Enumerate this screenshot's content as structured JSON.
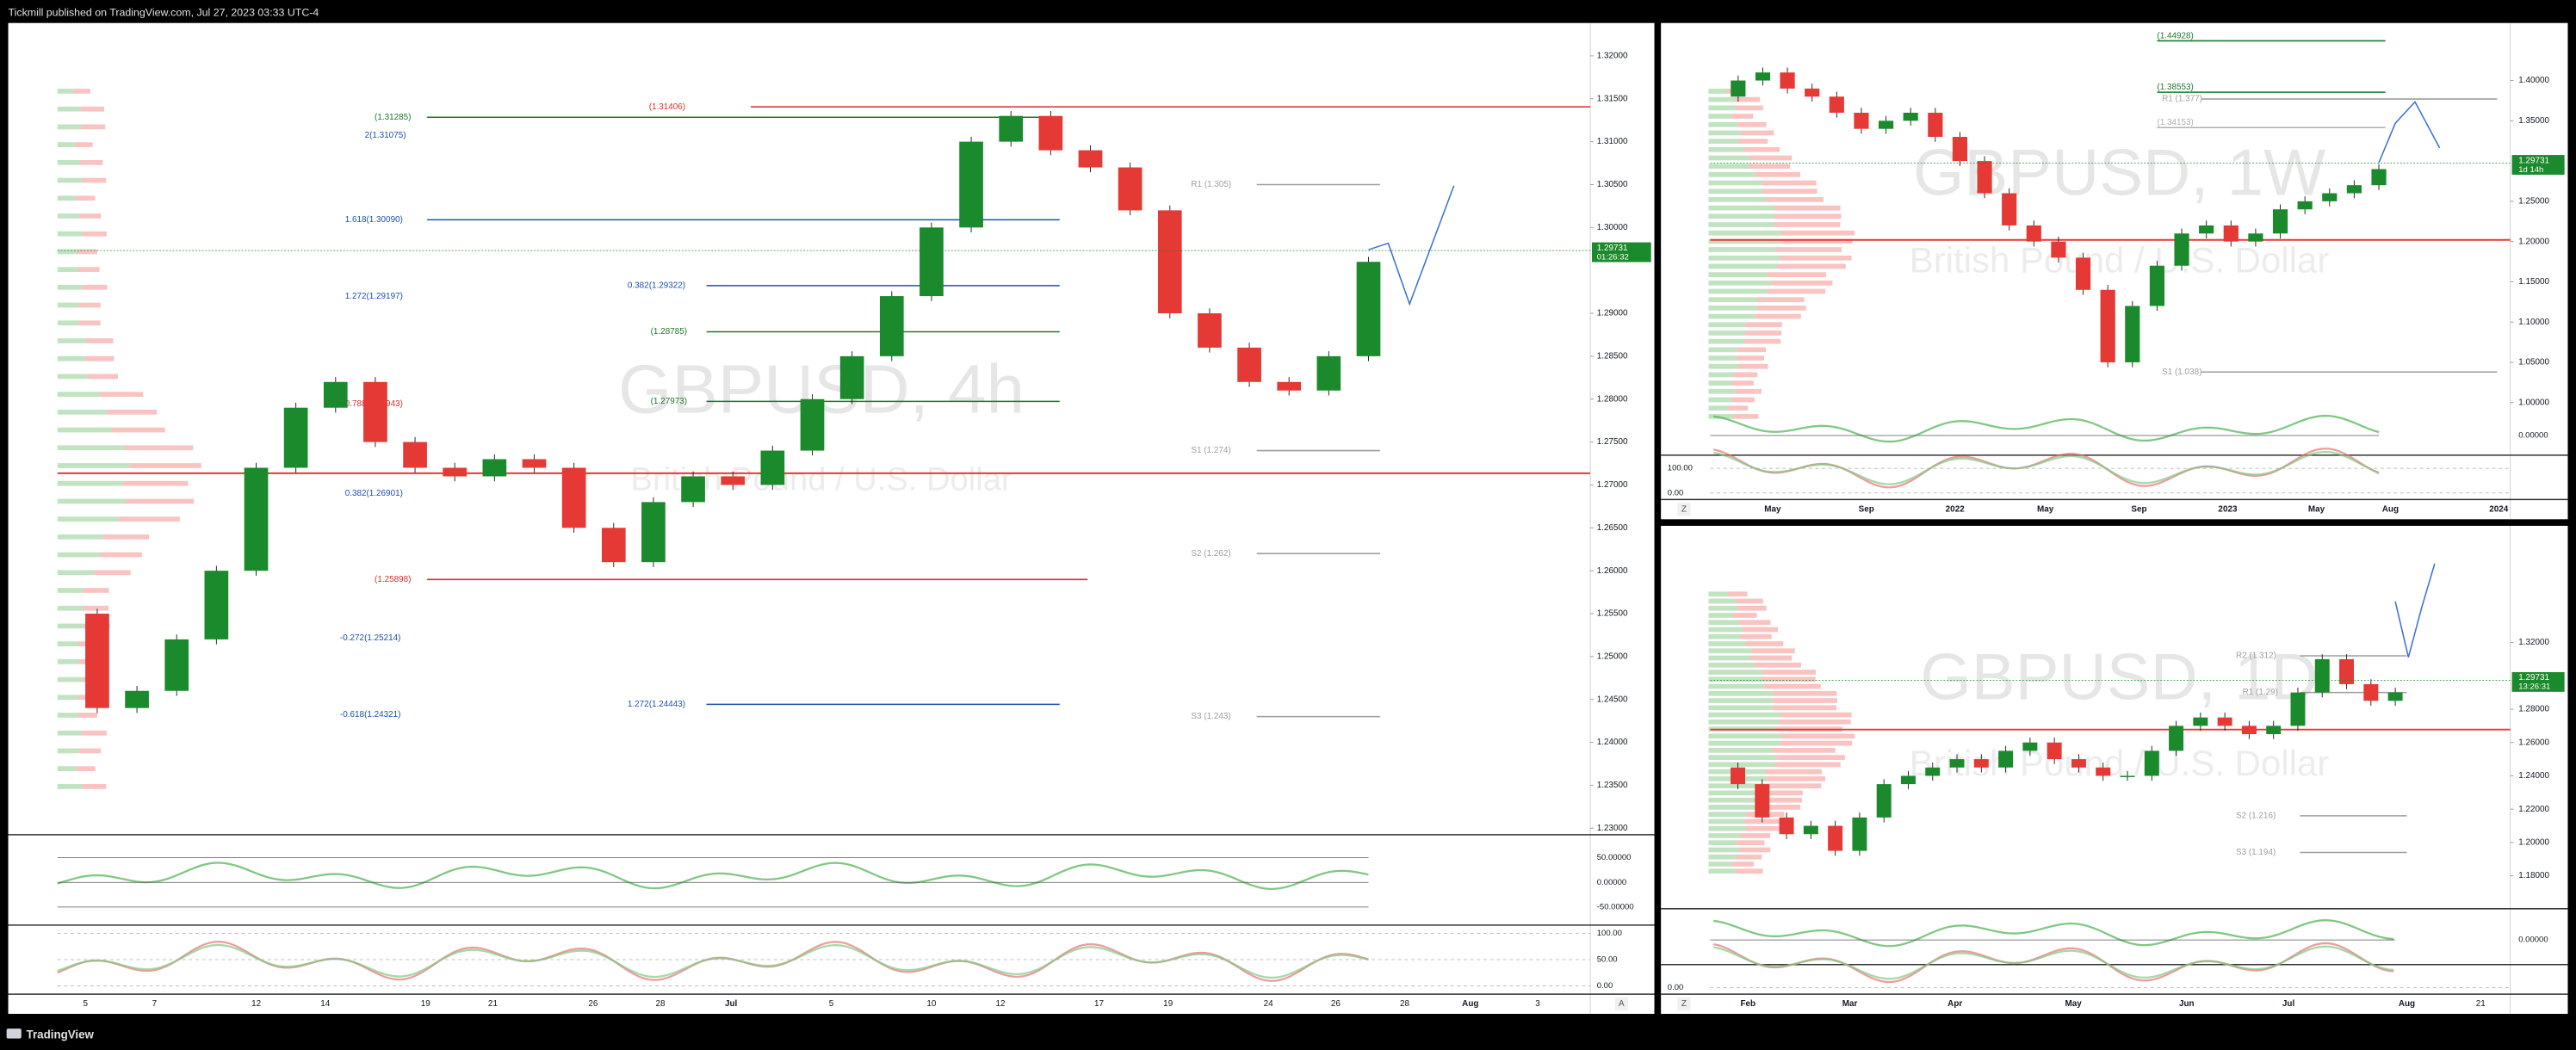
{
  "header": {
    "title": "Tickmill published on TradingView.com, Jul 27, 2023 03:33 UTC-4"
  },
  "footer": {
    "brand": "TradingView"
  },
  "panes": [
    {
      "watermark": "GBPUSD, 4h",
      "description": "British Pound / U.S. Dollar",
      "price_ticks": [
        {
          "value": 1.32,
          "label": "1.32000"
        },
        {
          "value": 1.315,
          "label": "1.31500"
        },
        {
          "value": 1.31,
          "label": "1.31000"
        },
        {
          "value": 1.305,
          "label": "1.30500"
        },
        {
          "value": 1.3,
          "label": "1.30000"
        },
        {
          "value": 1.29,
          "label": "1.29000"
        },
        {
          "value": 1.285,
          "label": "1.28500"
        },
        {
          "value": 1.28,
          "label": "1.28000"
        },
        {
          "value": 1.275,
          "label": "1.27500"
        },
        {
          "value": 1.27,
          "label": "1.27000"
        },
        {
          "value": 1.265,
          "label": "1.26500"
        },
        {
          "value": 1.26,
          "label": "1.26000"
        },
        {
          "value": 1.255,
          "label": "1.25500"
        },
        {
          "value": 1.25,
          "label": "1.25000"
        },
        {
          "value": 1.245,
          "label": "1.24500"
        },
        {
          "value": 1.24,
          "label": "1.24000"
        },
        {
          "value": 1.235,
          "label": "1.23500"
        },
        {
          "value": 1.23,
          "label": "1.23000"
        }
      ],
      "price_path": [
        1.255,
        1.244,
        1.246,
        1.252,
        1.26,
        1.272,
        1.279,
        1.282,
        1.275,
        1.272,
        1.271,
        1.273,
        1.272,
        1.265,
        1.261,
        1.268,
        1.271,
        1.27,
        1.274,
        1.28,
        1.285,
        1.292,
        1.3,
        1.31,
        1.313,
        1.309,
        1.307,
        1.302,
        1.29,
        1.286,
        1.282,
        1.281,
        1.285,
        1.296
      ],
      "current_price": {
        "value": 1.29731,
        "label": "1.29731",
        "timer": "01:26:32"
      },
      "annotations": [
        {
          "text": "(1.31285)",
          "price": 1.31285,
          "color": "#1b7a2a"
        },
        {
          "text": "2(1.31075)",
          "price": 1.31075,
          "color": "#1e4fb0"
        },
        {
          "text": "(1.31406)",
          "price": 1.31406,
          "color": "#d32f2f"
        },
        {
          "text": "1.618(1.30090)",
          "price": 1.3009,
          "color": "#1e4fb0"
        },
        {
          "text": "0.382(1.29322)",
          "price": 1.29322,
          "color": "#1e4fb0"
        },
        {
          "text": "1.272(1.29197)",
          "price": 1.29197,
          "color": "#1e4fb0"
        },
        {
          "text": "(1.28785)",
          "price": 1.28785,
          "color": "#1b7a2a"
        },
        {
          "text": "0.788(1.27943)",
          "price": 1.27943,
          "color": "#d32f2f"
        },
        {
          "text": "(1.27973)",
          "price": 1.27973,
          "color": "#1b7a2a"
        },
        {
          "text": "0.382(1.26901)",
          "price": 1.26901,
          "color": "#1e4fb0"
        },
        {
          "text": "(1.25898)",
          "price": 1.25898,
          "color": "#d32f2f"
        },
        {
          "text": "-0.272(1.25214)",
          "price": 1.25214,
          "color": "#1e4fb0"
        },
        {
          "text": "1.272(1.24443)",
          "price": 1.24443,
          "color": "#1e4fb0"
        },
        {
          "text": "-0.618(1.24321)",
          "price": 1.24321,
          "color": "#1e4fb0"
        },
        {
          "text": "R1 (1.305)",
          "price": 1.305,
          "color": "#9e9e9e"
        },
        {
          "text": "S1 (1.274)",
          "price": 1.274,
          "color": "#9e9e9e"
        },
        {
          "text": "S2 (1.262)",
          "price": 1.262,
          "color": "#9e9e9e"
        },
        {
          "text": "S3 (1.243)",
          "price": 1.243,
          "color": "#9e9e9e"
        }
      ],
      "dates": [
        "5",
        "7",
        "12",
        "14",
        "19",
        "21",
        "26",
        "28",
        "Jul",
        "5",
        "10",
        "12",
        "17",
        "19",
        "24",
        "26",
        "28",
        "Aug",
        "3"
      ],
      "rsi_labels": [
        {
          "value": 50,
          "label": "50.00000"
        },
        {
          "value": 0,
          "label": "0.00000"
        },
        {
          "value": -50,
          "label": "-50.00000"
        }
      ],
      "stoch_labels": [
        {
          "value": 100,
          "label": "100.00"
        },
        {
          "value": 50,
          "label": "50.00"
        },
        {
          "value": 0,
          "label": "0.00"
        }
      ],
      "scale_button": "A"
    },
    {
      "watermark": "GBPUSD, 1W",
      "description": "British Pound / U.S. Dollar",
      "price_ticks": [
        {
          "value": 1.4,
          "label": "1.40000"
        },
        {
          "value": 1.35,
          "label": "1.35000"
        },
        {
          "value": 1.25,
          "label": "1.25000"
        },
        {
          "value": 1.2,
          "label": "1.20000"
        },
        {
          "value": 1.15,
          "label": "1.15000"
        },
        {
          "value": 1.1,
          "label": "1.10000"
        },
        {
          "value": 1.05,
          "label": "1.05000"
        },
        {
          "value": 1.0,
          "label": "1.00000"
        }
      ],
      "price_path": [
        1.38,
        1.4,
        1.41,
        1.39,
        1.38,
        1.36,
        1.34,
        1.35,
        1.36,
        1.33,
        1.3,
        1.26,
        1.22,
        1.2,
        1.18,
        1.14,
        1.05,
        1.12,
        1.17,
        1.21,
        1.22,
        1.2,
        1.21,
        1.24,
        1.25,
        1.26,
        1.27,
        1.29
      ],
      "current_price": {
        "value": 1.29731,
        "label": "1.29731",
        "timer": "1d 14h"
      },
      "annotations": [
        {
          "text": "(1.44928)",
          "price": 1.44928,
          "color": "#1b7a2a"
        },
        {
          "text": "(1.38553)",
          "price": 1.38553,
          "color": "#1b7a2a"
        },
        {
          "text": "R1 (1.377)",
          "price": 1.377,
          "color": "#9e9e9e"
        },
        {
          "text": "(1.34153)",
          "price": 1.34153,
          "color": "#b0b0b0"
        },
        {
          "text": "S1 (1.038)",
          "price": 1.038,
          "color": "#9e9e9e"
        }
      ],
      "dates": [
        "May",
        "Sep",
        "2022",
        "May",
        "Sep",
        "2023",
        "May",
        "Aug",
        "2024"
      ],
      "rsi_labels": [
        {
          "value": 0,
          "label": "0.00000"
        }
      ],
      "stoch_labels": [
        {
          "value": 100,
          "label": "100.00"
        },
        {
          "value": 0,
          "label": "0.00"
        }
      ],
      "scale_button": "Z"
    },
    {
      "watermark": "GBPUSD, 1D",
      "description": "British Pound / U.S. Dollar",
      "price_ticks": [
        {
          "value": 1.32,
          "label": "1.32000"
        },
        {
          "value": 1.28,
          "label": "1.28000"
        },
        {
          "value": 1.26,
          "label": "1.26000"
        },
        {
          "value": 1.24,
          "label": "1.24000"
        },
        {
          "value": 1.22,
          "label": "1.22000"
        },
        {
          "value": 1.2,
          "label": "1.20000"
        },
        {
          "value": 1.18,
          "label": "1.18000"
        }
      ],
      "price_path": [
        1.245,
        1.235,
        1.215,
        1.205,
        1.21,
        1.195,
        1.215,
        1.235,
        1.24,
        1.245,
        1.25,
        1.245,
        1.255,
        1.26,
        1.25,
        1.245,
        1.24,
        1.24,
        1.255,
        1.27,
        1.275,
        1.27,
        1.265,
        1.27,
        1.29,
        1.31,
        1.295,
        1.285,
        1.29
      ],
      "current_price": {
        "value": 1.29731,
        "label": "1.29731",
        "timer": "13:26:31"
      },
      "annotations": [
        {
          "text": "R2 (1.312)",
          "price": 1.312,
          "color": "#9e9e9e"
        },
        {
          "text": "R1 (1.29)",
          "price": 1.29,
          "color": "#9e9e9e"
        },
        {
          "text": "S2 (1.216)",
          "price": 1.216,
          "color": "#9e9e9e"
        },
        {
          "text": "S3 (1.194)",
          "price": 1.194,
          "color": "#9e9e9e"
        }
      ],
      "dates": [
        "Feb",
        "Mar",
        "Apr",
        "May",
        "Jun",
        "Jul",
        "Aug",
        "21"
      ],
      "rsi_labels": [
        {
          "value": 0,
          "label": "0.00000"
        }
      ],
      "stoch_labels": [
        {
          "value": 0,
          "label": "0.00"
        }
      ],
      "scale_button": "Z"
    }
  ]
}
